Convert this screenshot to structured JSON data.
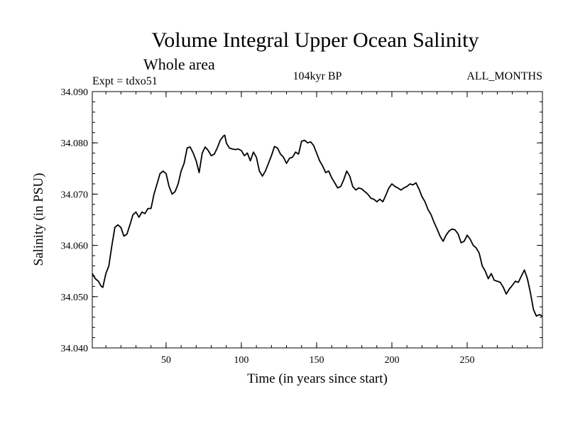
{
  "chart_data": {
    "type": "line",
    "title": "Volume Integral Upper Ocean Salinity",
    "subtitle": "Whole area",
    "experiment_label": "Expt = tdxo51",
    "period_label": "104kyr BP",
    "months_label": "ALL_MONTHS",
    "xlabel": "Time (in years since start)",
    "ylabel": "Salinity (in PSU)",
    "xlim": [
      1,
      300
    ],
    "ylim": [
      34.04,
      34.09
    ],
    "x_ticks": [
      {
        "value": 50,
        "label": "50"
      },
      {
        "value": 100,
        "label": "100"
      },
      {
        "value": 150,
        "label": "150"
      },
      {
        "value": 200,
        "label": "200"
      },
      {
        "value": 250,
        "label": "250"
      }
    ],
    "y_ticks": [
      {
        "value": 34.04,
        "label": "34.040"
      },
      {
        "value": 34.05,
        "label": "34.050"
      },
      {
        "value": 34.06,
        "label": "34.060"
      },
      {
        "value": 34.07,
        "label": "34.070"
      },
      {
        "value": 34.08,
        "label": "34.080"
      },
      {
        "value": 34.09,
        "label": "34.090"
      }
    ],
    "series": [
      {
        "name": "Salinity",
        "color": "#000000",
        "points": [
          [
            1,
            34.0545
          ],
          [
            3,
            34.0535
          ],
          [
            5,
            34.053
          ],
          [
            7,
            34.052
          ],
          [
            8,
            34.0518
          ],
          [
            10,
            34.0545
          ],
          [
            12,
            34.056
          ],
          [
            14,
            34.06
          ],
          [
            16,
            34.0635
          ],
          [
            18,
            34.064
          ],
          [
            20,
            34.0635
          ],
          [
            22,
            34.0618
          ],
          [
            24,
            34.0622
          ],
          [
            26,
            34.064
          ],
          [
            28,
            34.066
          ],
          [
            30,
            34.0665
          ],
          [
            32,
            34.0655
          ],
          [
            34,
            34.0665
          ],
          [
            36,
            34.0662
          ],
          [
            38,
            34.0672
          ],
          [
            40,
            34.0672
          ],
          [
            42,
            34.07
          ],
          [
            44,
            34.072
          ],
          [
            46,
            34.074
          ],
          [
            48,
            34.0745
          ],
          [
            50,
            34.074
          ],
          [
            52,
            34.0715
          ],
          [
            54,
            34.07
          ],
          [
            56,
            34.0705
          ],
          [
            58,
            34.072
          ],
          [
            60,
            34.0745
          ],
          [
            62,
            34.076
          ],
          [
            64,
            34.079
          ],
          [
            66,
            34.0792
          ],
          [
            68,
            34.078
          ],
          [
            70,
            34.0765
          ],
          [
            72,
            34.0742
          ],
          [
            74,
            34.078
          ],
          [
            76,
            34.0792
          ],
          [
            78,
            34.0785
          ],
          [
            80,
            34.0775
          ],
          [
            82,
            34.0778
          ],
          [
            84,
            34.079
          ],
          [
            86,
            34.0805
          ],
          [
            88,
            34.0813
          ],
          [
            89,
            34.0815
          ],
          [
            90,
            34.08
          ],
          [
            92,
            34.079
          ],
          [
            94,
            34.0788
          ],
          [
            96,
            34.0787
          ],
          [
            98,
            34.0788
          ],
          [
            100,
            34.0785
          ],
          [
            102,
            34.0775
          ],
          [
            104,
            34.078
          ],
          [
            106,
            34.0765
          ],
          [
            108,
            34.0782
          ],
          [
            110,
            34.0772
          ],
          [
            112,
            34.0745
          ],
          [
            114,
            34.0735
          ],
          [
            116,
            34.0745
          ],
          [
            118,
            34.076
          ],
          [
            120,
            34.0775
          ],
          [
            122,
            34.0793
          ],
          [
            124,
            34.079
          ],
          [
            126,
            34.0778
          ],
          [
            128,
            34.0772
          ],
          [
            130,
            34.076
          ],
          [
            132,
            34.077
          ],
          [
            134,
            34.0772
          ],
          [
            136,
            34.0782
          ],
          [
            138,
            34.0778
          ],
          [
            140,
            34.0803
          ],
          [
            142,
            34.0805
          ],
          [
            144,
            34.08
          ],
          [
            146,
            34.0802
          ],
          [
            148,
            34.0795
          ],
          [
            150,
            34.078
          ],
          [
            152,
            34.0765
          ],
          [
            154,
            34.0755
          ],
          [
            156,
            34.0742
          ],
          [
            158,
            34.0745
          ],
          [
            160,
            34.0732
          ],
          [
            162,
            34.0722
          ],
          [
            164,
            34.0712
          ],
          [
            166,
            34.0715
          ],
          [
            168,
            34.0728
          ],
          [
            170,
            34.0745
          ],
          [
            172,
            34.0735
          ],
          [
            174,
            34.0715
          ],
          [
            176,
            34.0708
          ],
          [
            178,
            34.0712
          ],
          [
            180,
            34.071
          ],
          [
            182,
            34.0705
          ],
          [
            184,
            34.07
          ],
          [
            186,
            34.0692
          ],
          [
            188,
            34.069
          ],
          [
            190,
            34.0685
          ],
          [
            192,
            34.069
          ],
          [
            194,
            34.0685
          ],
          [
            196,
            34.0698
          ],
          [
            198,
            34.0712
          ],
          [
            200,
            34.072
          ],
          [
            202,
            34.0715
          ],
          [
            204,
            34.0712
          ],
          [
            206,
            34.0708
          ],
          [
            208,
            34.0712
          ],
          [
            210,
            34.0715
          ],
          [
            212,
            34.072
          ],
          [
            214,
            34.0718
          ],
          [
            216,
            34.0722
          ],
          [
            218,
            34.071
          ],
          [
            220,
            34.0695
          ],
          [
            222,
            34.0685
          ],
          [
            224,
            34.067
          ],
          [
            226,
            34.066
          ],
          [
            228,
            34.0645
          ],
          [
            230,
            34.0632
          ],
          [
            232,
            34.0618
          ],
          [
            234,
            34.0608
          ],
          [
            236,
            34.062
          ],
          [
            238,
            34.0628
          ],
          [
            240,
            34.0632
          ],
          [
            242,
            34.063
          ],
          [
            244,
            34.0622
          ],
          [
            246,
            34.0605
          ],
          [
            248,
            34.0608
          ],
          [
            250,
            34.062
          ],
          [
            252,
            34.0612
          ],
          [
            254,
            34.06
          ],
          [
            256,
            34.0595
          ],
          [
            258,
            34.0585
          ],
          [
            260,
            34.056
          ],
          [
            262,
            34.055
          ],
          [
            264,
            34.0535
          ],
          [
            266,
            34.0545
          ],
          [
            268,
            34.0532
          ],
          [
            270,
            34.053
          ],
          [
            272,
            34.0528
          ],
          [
            274,
            34.0518
          ],
          [
            276,
            34.0505
          ],
          [
            278,
            34.0515
          ],
          [
            280,
            34.0522
          ],
          [
            282,
            34.053
          ],
          [
            284,
            34.0528
          ],
          [
            286,
            34.054
          ],
          [
            288,
            34.0552
          ],
          [
            290,
            34.0535
          ],
          [
            292,
            34.0508
          ],
          [
            294,
            34.0475
          ],
          [
            296,
            34.0462
          ],
          [
            298,
            34.0465
          ],
          [
            300,
            34.0462
          ]
        ]
      }
    ]
  }
}
